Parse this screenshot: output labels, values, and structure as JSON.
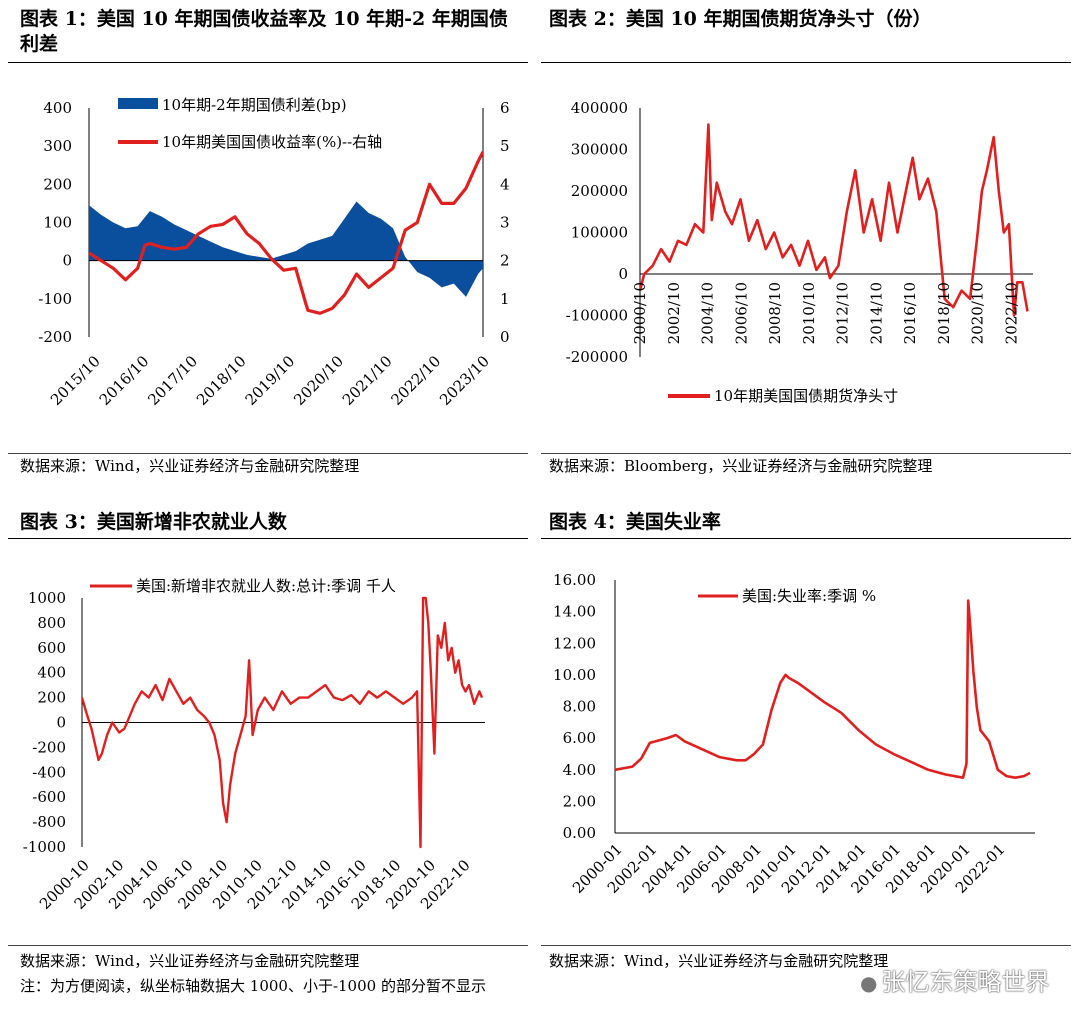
{
  "panels": [
    {
      "title": "图表 1：美国 10 年期国债收益率及 10 年期-2 年期国债利差",
      "source": "数据来源：Wind，兴业证券经济与金融研究院整理"
    },
    {
      "title": "图表 2：美国 10 年期国债期货净头寸（份）",
      "source": "数据来源：Bloomberg，兴业证券经济与金融研究院整理"
    },
    {
      "title": "图表 3：美国新增非农就业人数",
      "source": "数据来源：Wind，兴业证券经济与金融研究院整理",
      "note": "注：为方便阅读，纵坐标轴数据大 1000、小于-1000 的部分暂不显示"
    },
    {
      "title": "图表 4：美国失业率",
      "source": "数据来源：Wind，兴业证券经济与金融研究院整理"
    }
  ],
  "watermark": "张忆东策略世界",
  "colors": {
    "red": "#e0201f",
    "blue": "#0a4f9e"
  },
  "chart_data": [
    {
      "type": "area",
      "x_ticks": [
        "2015/10",
        "2016/10",
        "2017/10",
        "2018/10",
        "2019/10",
        "2020/10",
        "2021/10",
        "2022/10",
        "2023/10"
      ],
      "y_left": {
        "ticks": [
          "-200",
          "-100",
          "0",
          "100",
          "200",
          "300",
          "400"
        ],
        "range": [
          -200,
          400
        ]
      },
      "y_right": {
        "ticks": [
          "0",
          "1",
          "2",
          "3",
          "4",
          "5",
          "6"
        ],
        "range": [
          0,
          6
        ]
      },
      "series": [
        {
          "name": "10年期-2年期国债利差(bp)",
          "axis": "left",
          "style": "area",
          "x": [
            2015.75,
            2016.0,
            2016.25,
            2016.5,
            2016.75,
            2017.0,
            2017.25,
            2017.5,
            2017.75,
            2018.0,
            2018.25,
            2018.5,
            2018.75,
            2019.0,
            2019.25,
            2019.5,
            2019.75,
            2020.0,
            2020.25,
            2020.5,
            2020.75,
            2021.0,
            2021.25,
            2021.5,
            2021.75,
            2022.0,
            2022.25,
            2022.5,
            2022.75,
            2023.0,
            2023.25,
            2023.5,
            2023.75,
            2023.85
          ],
          "values": [
            145,
            120,
            100,
            85,
            90,
            130,
            115,
            95,
            80,
            65,
            50,
            35,
            25,
            15,
            10,
            5,
            15,
            25,
            45,
            55,
            65,
            110,
            155,
            125,
            110,
            85,
            10,
            -30,
            -45,
            -70,
            -60,
            -95,
            -35,
            -20
          ]
        },
        {
          "name": "10年期美国国债收益率(%)--右轴",
          "axis": "right",
          "style": "line",
          "x": [
            2015.75,
            2016.0,
            2016.25,
            2016.5,
            2016.75,
            2016.9,
            2017.0,
            2017.25,
            2017.5,
            2017.75,
            2018.0,
            2018.25,
            2018.5,
            2018.75,
            2019.0,
            2019.25,
            2019.5,
            2019.75,
            2020.0,
            2020.2,
            2020.25,
            2020.5,
            2020.75,
            2021.0,
            2021.25,
            2021.5,
            2021.75,
            2022.0,
            2022.25,
            2022.5,
            2022.75,
            2023.0,
            2023.25,
            2023.5,
            2023.75,
            2023.85
          ],
          "values": [
            2.2,
            2.0,
            1.8,
            1.5,
            1.8,
            2.4,
            2.45,
            2.35,
            2.3,
            2.35,
            2.7,
            2.9,
            2.95,
            3.15,
            2.7,
            2.45,
            2.05,
            1.75,
            1.8,
            0.9,
            0.7,
            0.62,
            0.75,
            1.1,
            1.65,
            1.3,
            1.55,
            1.8,
            2.8,
            3.0,
            4.0,
            3.5,
            3.5,
            3.9,
            4.6,
            4.85
          ]
        }
      ]
    },
    {
      "type": "line",
      "x_ticks": [
        "2000/10",
        "2002/10",
        "2004/10",
        "2006/10",
        "2008/10",
        "2010/10",
        "2012/10",
        "2014/10",
        "2016/10",
        "2018/10",
        "2020/10",
        "2022/10"
      ],
      "y_ticks": [
        "-200000",
        "-100000",
        "0",
        "100000",
        "200000",
        "300000",
        "400000"
      ],
      "ylim": [
        -200000,
        400000
      ],
      "series": [
        {
          "name": "10年期美国国债期货净头寸",
          "x": [
            2000.75,
            2001.0,
            2001.5,
            2002.0,
            2002.5,
            2003.0,
            2003.5,
            2004.0,
            2004.5,
            2004.8,
            2005.0,
            2005.3,
            2005.8,
            2006.2,
            2006.7,
            2007.2,
            2007.7,
            2008.2,
            2008.7,
            2009.2,
            2009.7,
            2010.2,
            2010.7,
            2011.2,
            2011.7,
            2012.0,
            2012.5,
            2013.0,
            2013.5,
            2014.0,
            2014.5,
            2015.0,
            2015.5,
            2016.0,
            2016.5,
            2016.9,
            2017.3,
            2017.8,
            2018.3,
            2018.8,
            2019.3,
            2019.8,
            2020.3,
            2020.7,
            2021.0,
            2021.3,
            2021.7,
            2022.0,
            2022.3,
            2022.6,
            2022.9,
            2023.1,
            2023.4,
            2023.7
          ],
          "values": [
            -40000,
            0,
            20000,
            60000,
            30000,
            80000,
            70000,
            120000,
            100000,
            360000,
            130000,
            220000,
            150000,
            120000,
            180000,
            80000,
            130000,
            60000,
            100000,
            40000,
            70000,
            20000,
            80000,
            10000,
            40000,
            -10000,
            20000,
            150000,
            250000,
            100000,
            180000,
            80000,
            220000,
            100000,
            200000,
            280000,
            180000,
            230000,
            150000,
            -60000,
            -80000,
            -40000,
            -60000,
            80000,
            200000,
            250000,
            330000,
            200000,
            100000,
            120000,
            -100000,
            -20000,
            -20000,
            -90000
          ]
        }
      ]
    },
    {
      "type": "line",
      "x_ticks": [
        "2000-10",
        "2002-10",
        "2004-10",
        "2006-10",
        "2008-10",
        "2010-10",
        "2012-10",
        "2014-10",
        "2016-10",
        "2018-10",
        "2020-10",
        "2022-10"
      ],
      "y_ticks": [
        "-1000",
        "-800",
        "-600",
        "-400",
        "-200",
        "0",
        "200",
        "400",
        "600",
        "800",
        "1000"
      ],
      "ylim": [
        -1000,
        1000
      ],
      "series": [
        {
          "name": "美国:新增非农就业人数:总计:季调 千人",
          "x": [
            2000.75,
            2001.0,
            2001.3,
            2001.7,
            2001.9,
            2002.2,
            2002.5,
            2002.9,
            2003.2,
            2003.5,
            2003.8,
            2004.2,
            2004.6,
            2005.0,
            2005.4,
            2005.8,
            2006.2,
            2006.6,
            2007.0,
            2007.4,
            2007.8,
            2008.1,
            2008.4,
            2008.7,
            2008.9,
            2009.1,
            2009.3,
            2009.6,
            2009.9,
            2010.2,
            2010.4,
            2010.6,
            2010.9,
            2011.3,
            2011.8,
            2012.3,
            2012.8,
            2013.3,
            2013.8,
            2014.3,
            2014.8,
            2015.3,
            2015.8,
            2016.3,
            2016.8,
            2017.3,
            2017.8,
            2018.3,
            2018.8,
            2019.3,
            2019.8,
            2020.1,
            2020.3,
            2020.45,
            2020.6,
            2020.75,
            2020.9,
            2021.1,
            2021.3,
            2021.5,
            2021.7,
            2021.9,
            2022.1,
            2022.3,
            2022.5,
            2022.7,
            2022.9,
            2023.1,
            2023.4,
            2023.7,
            2023.85
          ],
          "values": [
            200,
            80,
            -50,
            -300,
            -250,
            -100,
            0,
            -80,
            -50,
            50,
            150,
            250,
            200,
            300,
            180,
            350,
            250,
            150,
            200,
            100,
            50,
            0,
            -100,
            -300,
            -650,
            -800,
            -500,
            -250,
            -100,
            50,
            500,
            -100,
            100,
            200,
            100,
            250,
            150,
            200,
            200,
            250,
            300,
            200,
            180,
            220,
            150,
            250,
            200,
            250,
            200,
            150,
            200,
            250,
            -1000,
            1000,
            1000,
            800,
            400,
            -250,
            700,
            600,
            800,
            500,
            600,
            400,
            500,
            300,
            250,
            300,
            150,
            250,
            200
          ]
        }
      ]
    },
    {
      "type": "line",
      "x_ticks": [
        "2000-01",
        "2002-01",
        "2004-01",
        "2006-01",
        "2008-01",
        "2010-01",
        "2012-01",
        "2014-01",
        "2016-01",
        "2018-01",
        "2020-01",
        "2022-01"
      ],
      "y_ticks": [
        "0.00",
        "2.00",
        "4.00",
        "6.00",
        "8.00",
        "10.00",
        "12.00",
        "14.00",
        "16.00"
      ],
      "ylim": [
        0,
        16
      ],
      "series": [
        {
          "name": "美国:失业率:季调 %",
          "x": [
            2000.0,
            2001.0,
            2001.5,
            2002.0,
            2003.0,
            2003.5,
            2004.0,
            2005.0,
            2006.0,
            2007.0,
            2007.5,
            2008.0,
            2008.5,
            2009.0,
            2009.5,
            2009.8,
            2010.0,
            2010.5,
            2011.0,
            2012.0,
            2013.0,
            2014.0,
            2015.0,
            2016.0,
            2017.0,
            2018.0,
            2019.0,
            2020.0,
            2020.2,
            2020.3,
            2020.4,
            2020.6,
            2020.8,
            2021.0,
            2021.5,
            2022.0,
            2022.5,
            2023.0,
            2023.5,
            2023.85
          ],
          "values": [
            4.0,
            4.2,
            4.7,
            5.7,
            6.0,
            6.2,
            5.8,
            5.3,
            4.8,
            4.6,
            4.6,
            5.0,
            5.6,
            7.8,
            9.5,
            10.0,
            9.8,
            9.5,
            9.1,
            8.3,
            7.6,
            6.5,
            5.6,
            5.0,
            4.5,
            4.0,
            3.7,
            3.5,
            4.4,
            14.7,
            13.3,
            10.2,
            7.9,
            6.5,
            5.8,
            4.0,
            3.6,
            3.5,
            3.6,
            3.8
          ]
        }
      ]
    }
  ]
}
